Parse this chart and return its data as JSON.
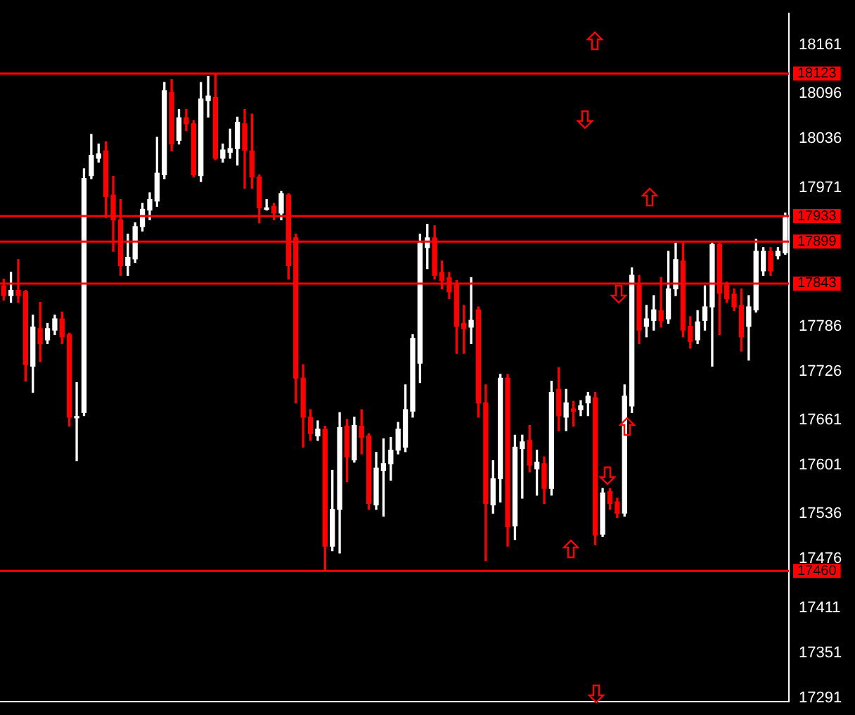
{
  "chart_data": {
    "type": "candlestick",
    "categories": [
      null,
      null,
      null,
      null,
      null,
      null,
      null,
      null,
      null,
      null,
      null,
      null,
      null,
      null,
      null,
      null,
      null,
      null,
      null,
      null,
      null,
      null,
      null,
      null,
      null,
      null,
      null,
      null,
      null,
      null,
      null,
      null,
      null,
      null,
      null,
      null,
      null,
      null,
      null,
      null,
      null,
      null,
      null,
      null,
      null,
      null,
      null,
      null,
      null,
      null,
      null,
      null,
      null,
      null,
      null,
      null,
      null,
      null,
      null,
      null,
      null,
      null,
      null,
      null,
      null,
      null,
      null,
      null,
      null,
      null,
      null,
      null,
      null,
      null,
      null,
      null,
      null,
      null,
      null,
      null,
      null,
      null,
      null,
      null,
      null,
      null,
      null,
      null,
      null,
      null,
      null,
      null,
      null,
      null,
      null,
      null,
      null,
      null,
      null,
      null,
      null,
      null,
      null,
      null,
      null,
      null,
      null,
      null
    ],
    "ohlc": [
      [
        17840,
        17849,
        17821,
        17827
      ],
      [
        17827,
        17858,
        17818,
        17834
      ],
      [
        17834,
        17875,
        17818,
        17827
      ],
      [
        17832,
        17834,
        17713,
        17735
      ],
      [
        17733,
        17801,
        17698,
        17785
      ],
      [
        17783,
        17818,
        17739,
        17763
      ],
      [
        17768,
        17790,
        17763,
        17783
      ],
      [
        17781,
        17801,
        17775,
        17796
      ],
      [
        17796,
        17805,
        17763,
        17772
      ],
      [
        17775,
        17777,
        17653,
        17665
      ],
      [
        17664,
        17711,
        17607,
        17665
      ],
      [
        17671,
        17996,
        17667,
        17983
      ],
      [
        17987,
        18042,
        17983,
        18014
      ],
      [
        18010,
        18029,
        18005,
        18016
      ],
      [
        18020,
        18032,
        17931,
        17959
      ],
      [
        17961,
        17986,
        17886,
        17928
      ],
      [
        17928,
        17955,
        17854,
        17867
      ],
      [
        17867,
        17909,
        17854,
        17878
      ],
      [
        17876,
        17924,
        17871,
        17919
      ],
      [
        17919,
        17950,
        17913,
        17942
      ],
      [
        17941,
        17964,
        17928,
        17955
      ],
      [
        17953,
        18038,
        17946,
        17990
      ],
      [
        17988,
        18111,
        17983,
        18100
      ],
      [
        18098,
        18115,
        18020,
        18029
      ],
      [
        18034,
        18075,
        18029,
        18064
      ],
      [
        18064,
        18075,
        18047,
        18056
      ],
      [
        18056,
        18060,
        17985,
        17988
      ],
      [
        17987,
        18111,
        17979,
        18089
      ],
      [
        18087,
        18119,
        18065,
        18093
      ],
      [
        18091,
        18123,
        18008,
        18010
      ],
      [
        18010,
        18029,
        18005,
        18021
      ],
      [
        18018,
        18049,
        18010,
        18023
      ],
      [
        18023,
        18065,
        18001,
        18058
      ],
      [
        18056,
        18075,
        17970,
        18021
      ],
      [
        18020,
        18069,
        17970,
        17985
      ],
      [
        17985,
        17988,
        17924,
        17944
      ],
      [
        17942,
        17955,
        17941,
        17944
      ],
      [
        17946,
        17950,
        17928,
        17937
      ],
      [
        17937,
        17966,
        17928,
        17963
      ],
      [
        17961,
        17963,
        17849,
        17867
      ],
      [
        17904,
        17909,
        17684,
        17717
      ],
      [
        17717,
        17735,
        17625,
        17665
      ],
      [
        17665,
        17675,
        17634,
        17643
      ],
      [
        17640,
        17660,
        17634,
        17649
      ],
      [
        17649,
        17653,
        17460,
        17493
      ],
      [
        17493,
        17594,
        17487,
        17542
      ],
      [
        17542,
        17671,
        17484,
        17651
      ],
      [
        17653,
        17662,
        17579,
        17612
      ],
      [
        17608,
        17665,
        17605,
        17654
      ],
      [
        17653,
        17675,
        17616,
        17638
      ],
      [
        17640,
        17643,
        17542,
        17550
      ],
      [
        17548,
        17618,
        17542,
        17597
      ],
      [
        17594,
        17636,
        17533,
        17603
      ],
      [
        17603,
        17638,
        17581,
        17621
      ],
      [
        17621,
        17658,
        17616,
        17649
      ],
      [
        17625,
        17708,
        17619,
        17675
      ],
      [
        17673,
        17775,
        17665,
        17770
      ],
      [
        17737,
        17909,
        17711,
        17897
      ],
      [
        17891,
        17922,
        17863,
        17904
      ],
      [
        17904,
        17920,
        17849,
        17854
      ],
      [
        17858,
        17873,
        17836,
        17847
      ],
      [
        17851,
        17858,
        17823,
        17832
      ],
      [
        17841,
        17847,
        17750,
        17786
      ],
      [
        17790,
        17814,
        17750,
        17783
      ],
      [
        17785,
        17851,
        17763,
        17794
      ],
      [
        17808,
        17812,
        17665,
        17684
      ],
      [
        17684,
        17708,
        17474,
        17550
      ],
      [
        17548,
        17607,
        17537,
        17583
      ],
      [
        17583,
        17722,
        17552,
        17717
      ],
      [
        17717,
        17722,
        17493,
        17519
      ],
      [
        17520,
        17641,
        17502,
        17625
      ],
      [
        17623,
        17641,
        17557,
        17632
      ],
      [
        17634,
        17654,
        17592,
        17601
      ],
      [
        17596,
        17621,
        17561,
        17605
      ],
      [
        17603,
        17612,
        17550,
        17570
      ],
      [
        17570,
        17713,
        17561,
        17698
      ],
      [
        17702,
        17731,
        17647,
        17667
      ],
      [
        17665,
        17702,
        17647,
        17684
      ],
      [
        17676,
        17686,
        17653,
        17673
      ],
      [
        17675,
        17687,
        17667,
        17680
      ],
      [
        17684,
        17698,
        17667,
        17693
      ],
      [
        17691,
        17698,
        17495,
        17508
      ],
      [
        17509,
        17570,
        17506,
        17564
      ],
      [
        17566,
        17570,
        17542,
        17550
      ],
      [
        17552,
        17557,
        17531,
        17537
      ],
      [
        17537,
        17708,
        17533,
        17693
      ],
      [
        17680,
        17864,
        17671,
        17854
      ],
      [
        17841,
        17854,
        17763,
        17781
      ],
      [
        17786,
        17814,
        17772,
        17796
      ],
      [
        17794,
        17827,
        17781,
        17808
      ],
      [
        17807,
        17851,
        17785,
        17794
      ],
      [
        17796,
        17886,
        17790,
        17836
      ],
      [
        17836,
        17897,
        17827,
        17875
      ],
      [
        17873,
        17897,
        17772,
        17781
      ],
      [
        17786,
        17799,
        17757,
        17766
      ],
      [
        17768,
        17807,
        17763,
        17792
      ],
      [
        17794,
        17840,
        17781,
        17812
      ],
      [
        17812,
        17897,
        17733,
        17895
      ],
      [
        17895,
        17897,
        17775,
        17830
      ],
      [
        17841,
        17845,
        17818,
        17823
      ],
      [
        17829,
        17836,
        17807,
        17812
      ],
      [
        17814,
        17836,
        17753,
        17772
      ],
      [
        17786,
        17827,
        17741,
        17812
      ],
      [
        17808,
        17902,
        17805,
        17886
      ],
      [
        17860,
        17891,
        17854,
        17886
      ],
      [
        17886,
        17891,
        17854,
        17860
      ],
      [
        17880,
        17891,
        17876,
        17886
      ],
      [
        17884,
        17937,
        17882,
        17931
      ]
    ],
    "colors": [
      "#ff0000",
      "#ffffff",
      "#ff0000",
      "#ff0000",
      "#ffffff",
      "#ff0000",
      "#ffffff",
      "#ffffff",
      "#ff0000",
      "#ff0000",
      "#ffffff",
      "#ffffff",
      "#ffffff",
      "#ffffff",
      "#ff0000",
      "#ff0000",
      "#ff0000",
      "#ffffff",
      "#ffffff",
      "#ffffff",
      "#ffffff",
      "#ffffff",
      "#ffffff",
      "#ff0000",
      "#ffffff",
      "#ff0000",
      "#ff0000",
      "#ffffff",
      "#ffffff",
      "#ff0000",
      "#ffffff",
      "#ffffff",
      "#ffffff",
      "#ff0000",
      "#ff0000",
      "#ff0000",
      "#ffffff",
      "#ff0000",
      "#ffffff",
      "#ff0000",
      "#ff0000",
      "#ff0000",
      "#ff0000",
      "#ffffff",
      "#ff0000",
      "#ffffff",
      "#ffffff",
      "#ff0000",
      "#ffffff",
      "#ff0000",
      "#ff0000",
      "#ffffff",
      "#ffffff",
      "#ffffff",
      "#ffffff",
      "#ffffff",
      "#ffffff",
      "#ffffff",
      "#ffffff",
      "#ff0000",
      "#ff0000",
      "#ff0000",
      "#ff0000",
      "#ff0000",
      "#ffffff",
      "#ff0000",
      "#ff0000",
      "#ffffff",
      "#ffffff",
      "#ff0000",
      "#ffffff",
      "#ffffff",
      "#ff0000",
      "#ffffff",
      "#ff0000",
      "#ffffff",
      "#ff0000",
      "#ffffff",
      "#ff0000",
      "#ffffff",
      "#ffffff",
      "#ff0000",
      "#ffffff",
      "#ff0000",
      "#ff0000",
      "#ffffff",
      "#ffffff",
      "#ff0000",
      "#ffffff",
      "#ffffff",
      "#ff0000",
      "#ffffff",
      "#ffffff",
      "#ff0000",
      "#ff0000",
      "#ffffff",
      "#ffffff",
      "#ffffff",
      "#ff0000",
      "#ff0000",
      "#ff0000",
      "#ff0000",
      "#ffffff",
      "#ffffff",
      "#ffffff",
      "#ff0000",
      "#ffffff",
      "#ffffff"
    ],
    "ylim": [
      17286,
      18203
    ],
    "yticks": [
      18161,
      18096,
      18036,
      17971,
      17786,
      17726,
      17661,
      17601,
      17536,
      17476,
      17411,
      17351,
      17291
    ],
    "ref_lines": [
      {
        "axis": "y",
        "value": 18123,
        "label": "18123",
        "color": "#ff0000"
      },
      {
        "axis": "y",
        "value": 17933,
        "label": "17933",
        "color": "#ff0000"
      },
      {
        "axis": "y",
        "value": 17899,
        "label": "17899",
        "color": "#ff0000"
      },
      {
        "axis": "y",
        "value": 17843,
        "label": "17843",
        "color": "#ff0000"
      },
      {
        "axis": "y",
        "value": 17460,
        "label": "17460",
        "color": "#ff0000"
      }
    ],
    "grid": false,
    "legend": false
  }
}
